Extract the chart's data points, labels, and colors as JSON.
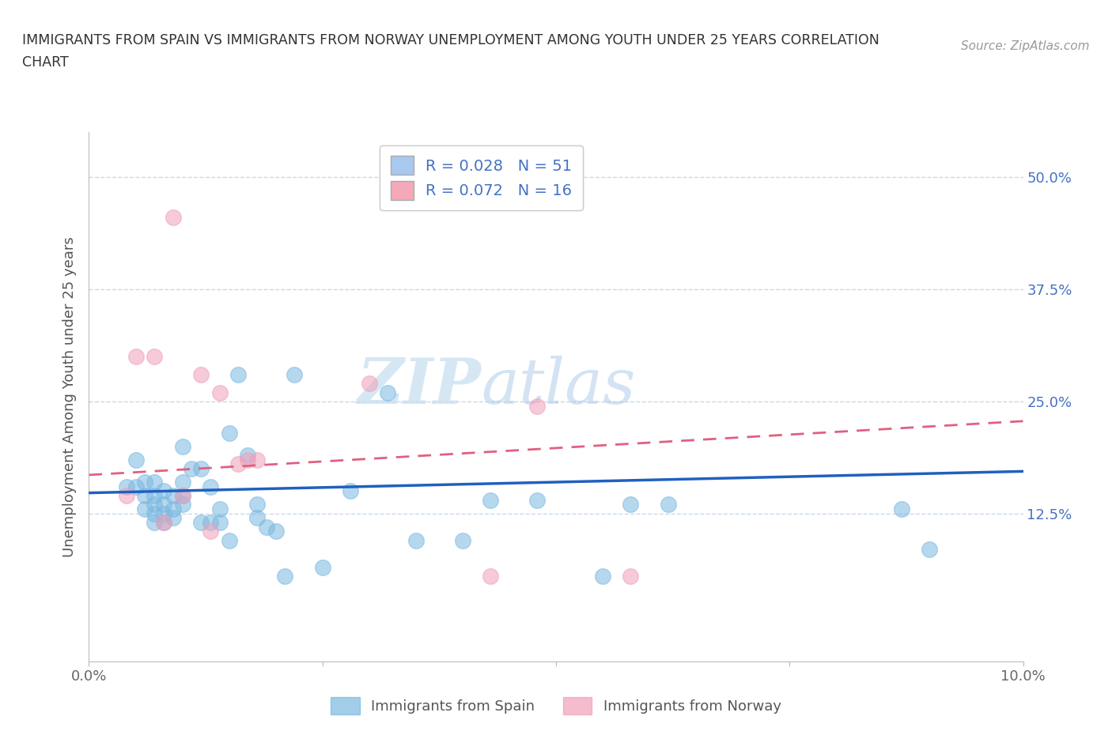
{
  "title_line1": "IMMIGRANTS FROM SPAIN VS IMMIGRANTS FROM NORWAY UNEMPLOYMENT AMONG YOUTH UNDER 25 YEARS CORRELATION",
  "title_line2": "CHART",
  "source_text": "Source: ZipAtlas.com",
  "xlabel": "",
  "ylabel": "Unemployment Among Youth under 25 years",
  "xlim": [
    0.0,
    0.1
  ],
  "ylim": [
    -0.04,
    0.55
  ],
  "x_ticks": [
    0.0,
    0.025,
    0.05,
    0.075,
    0.1
  ],
  "x_tick_labels": [
    "0.0%",
    "",
    "",
    "",
    "10.0%"
  ],
  "y_ticks": [
    0.125,
    0.25,
    0.375,
    0.5
  ],
  "y_tick_labels_right": [
    "12.5%",
    "25.0%",
    "37.5%",
    "50.0%"
  ],
  "legend_items": [
    {
      "label": "R = 0.028   N = 51",
      "color": "#a8c8f0"
    },
    {
      "label": "R = 0.072   N = 16",
      "color": "#f4a8b8"
    }
  ],
  "spain_color": "#7ab8e0",
  "norway_color": "#f0a0b8",
  "trend_spain_color": "#2060c0",
  "trend_norway_color": "#e06080",
  "watermark_zip": "ZIP",
  "watermark_atlas": "atlas",
  "spain_scatter_x": [
    0.004,
    0.005,
    0.005,
    0.006,
    0.006,
    0.006,
    0.007,
    0.007,
    0.007,
    0.007,
    0.007,
    0.008,
    0.008,
    0.008,
    0.008,
    0.009,
    0.009,
    0.009,
    0.01,
    0.01,
    0.01,
    0.01,
    0.011,
    0.012,
    0.012,
    0.013,
    0.013,
    0.014,
    0.014,
    0.015,
    0.015,
    0.016,
    0.017,
    0.018,
    0.018,
    0.019,
    0.02,
    0.021,
    0.022,
    0.025,
    0.028,
    0.032,
    0.035,
    0.04,
    0.043,
    0.048,
    0.055,
    0.058,
    0.062,
    0.087,
    0.09
  ],
  "spain_scatter_y": [
    0.155,
    0.155,
    0.185,
    0.13,
    0.145,
    0.16,
    0.115,
    0.125,
    0.135,
    0.145,
    0.16,
    0.115,
    0.125,
    0.135,
    0.15,
    0.12,
    0.13,
    0.145,
    0.135,
    0.145,
    0.16,
    0.2,
    0.175,
    0.115,
    0.175,
    0.115,
    0.155,
    0.115,
    0.13,
    0.095,
    0.215,
    0.28,
    0.19,
    0.12,
    0.135,
    0.11,
    0.105,
    0.055,
    0.28,
    0.065,
    0.15,
    0.26,
    0.095,
    0.095,
    0.14,
    0.14,
    0.055,
    0.135,
    0.135,
    0.13,
    0.085
  ],
  "norway_scatter_x": [
    0.004,
    0.005,
    0.007,
    0.008,
    0.009,
    0.01,
    0.012,
    0.013,
    0.014,
    0.016,
    0.017,
    0.018,
    0.03,
    0.043,
    0.048,
    0.058
  ],
  "norway_scatter_y": [
    0.145,
    0.3,
    0.3,
    0.115,
    0.455,
    0.145,
    0.28,
    0.105,
    0.26,
    0.18,
    0.185,
    0.185,
    0.27,
    0.055,
    0.245,
    0.055
  ],
  "trend_spain_x0": 0.0,
  "trend_spain_x1": 0.1,
  "trend_spain_y0": 0.148,
  "trend_spain_y1": 0.172,
  "trend_norway_x0": 0.0,
  "trend_norway_x1": 0.1,
  "trend_norway_y0": 0.168,
  "trend_norway_y1": 0.228,
  "legend_text_color": "#4472c4",
  "background_color": "#ffffff",
  "grid_color": "#c8d8e8"
}
